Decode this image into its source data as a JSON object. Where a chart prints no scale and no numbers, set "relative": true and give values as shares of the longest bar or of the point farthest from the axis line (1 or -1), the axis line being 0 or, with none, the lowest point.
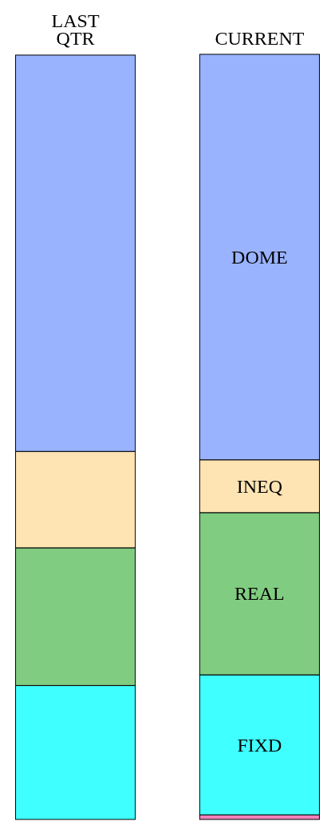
{
  "chart_data": {
    "type": "bar",
    "stacked": true,
    "relative": true,
    "categories": [
      "LAST QTR",
      "CURRENT"
    ],
    "series": [
      {
        "color": "#f080b8",
        "values": [
          null,
          0.006
        ]
      },
      {
        "name": "FIXD",
        "color": "#40ffff",
        "values": [
          0.175,
          0.183
        ]
      },
      {
        "name": "REAL",
        "color": "#80cc80",
        "values": [
          0.18,
          0.212
        ]
      },
      {
        "name": "INEQ",
        "color": "#ffe4b3",
        "values": [
          0.126,
          0.069
        ]
      },
      {
        "name": "DOME",
        "color": "#99b3ff",
        "values": [
          0.518,
          0.53
        ]
      }
    ]
  }
}
